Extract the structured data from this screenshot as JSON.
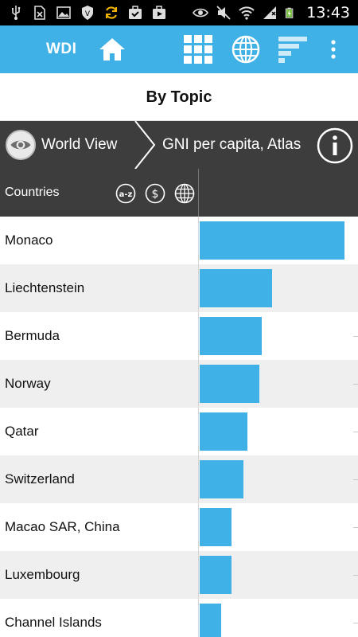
{
  "status_bar": {
    "time": "13:43",
    "left_icons": [
      "usb-icon",
      "no-sim-icon",
      "image-icon",
      "shield-icon",
      "sync-icon",
      "briefcase-check-icon",
      "briefcase-play-icon"
    ],
    "right_icons": [
      "eye-icon",
      "mute-icon",
      "wifi-icon",
      "signal-icon",
      "battery-charging-icon"
    ]
  },
  "app_bar": {
    "title": "WDI",
    "icons": [
      "home-icon",
      "grid-icon",
      "globe-icon",
      "bar-list-icon",
      "overflow-menu-icon"
    ],
    "background": "#3fb1e6"
  },
  "page": {
    "title": "By Topic"
  },
  "breadcrumb": {
    "item1": "World View",
    "item2": "GNI per capita, Atlas",
    "info_icon": "info-icon"
  },
  "table": {
    "header": "Countries",
    "sort_icons": [
      "sort-az-icon",
      "sort-value-icon",
      "sort-region-icon"
    ],
    "sort_labels": {
      "az": "a-z",
      "value": "$"
    },
    "rows": [
      {
        "country": "Monaco",
        "value": 1.0
      },
      {
        "country": "Liechtenstein",
        "value": 0.5
      },
      {
        "country": "Bermuda",
        "value": 0.43
      },
      {
        "country": "Norway",
        "value": 0.41
      },
      {
        "country": "Qatar",
        "value": 0.33
      },
      {
        "country": "Switzerland",
        "value": 0.3
      },
      {
        "country": "Macao SAR, China",
        "value": 0.22
      },
      {
        "country": "Luxembourg",
        "value": 0.22
      },
      {
        "country": "Channel Islands",
        "value": 0.15
      }
    ],
    "bar_color": "#3fb1e6"
  }
}
